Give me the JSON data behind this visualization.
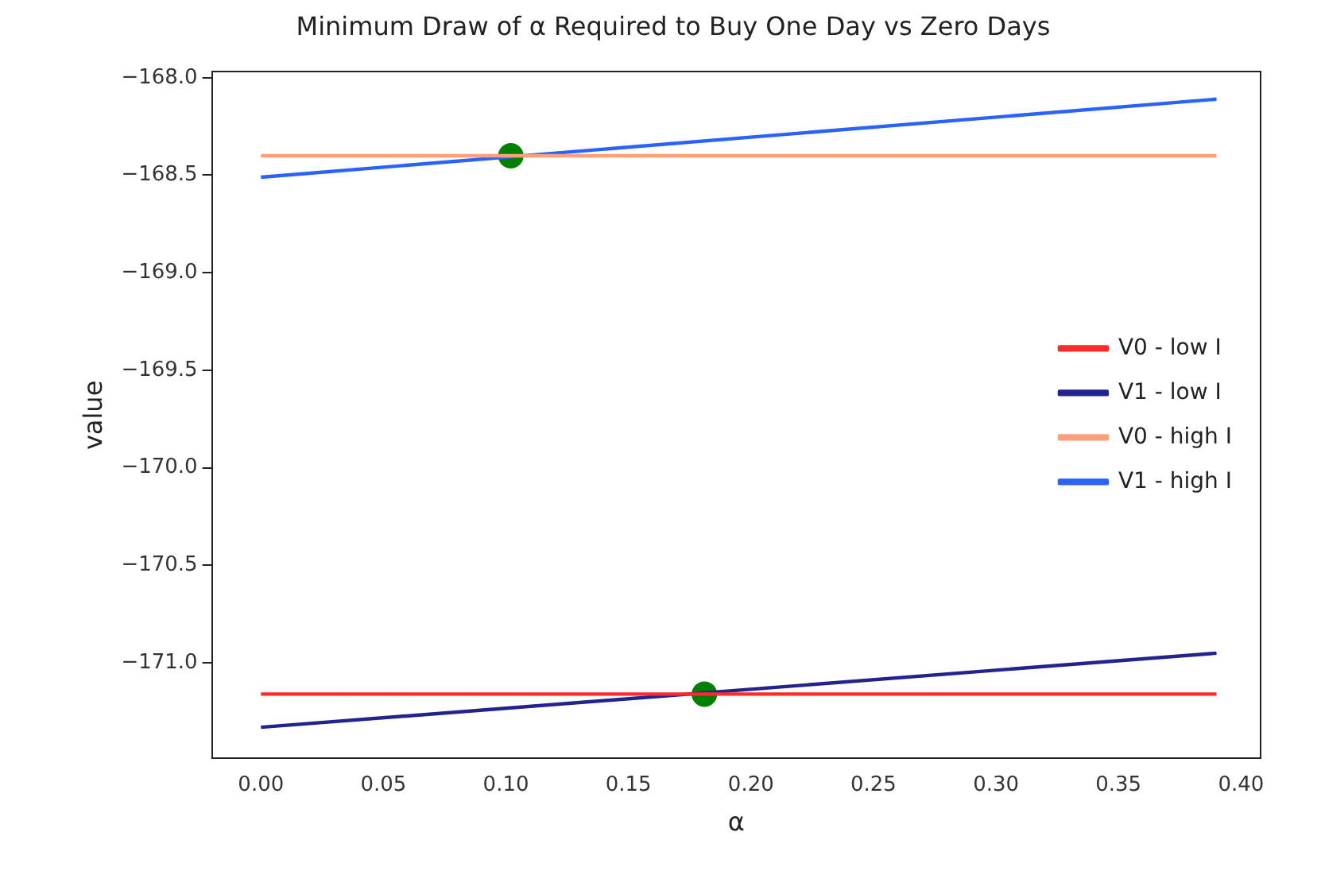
{
  "chart_data": {
    "type": "line",
    "title": "Minimum Draw of α Required to Buy One Day vs Zero Days",
    "xlabel": "α",
    "ylabel": "value",
    "xlim": [
      -0.02,
      0.408
    ],
    "xticks": [
      {
        "value": 0,
        "label": "0.00"
      },
      0.05,
      {
        "value": 0.1,
        "label": "0.10"
      },
      0.15,
      {
        "value": 0.2,
        "label": "0.20"
      },
      0.25,
      {
        "value": 0.3,
        "label": "0.30"
      },
      0.35,
      {
        "value": 0.4,
        "label": "0.40"
      }
    ],
    "ylim": [
      -171.49,
      -167.97
    ],
    "yticks": [
      {
        "value": -171,
        "label": "−171.0"
      },
      {
        "value": -170.5,
        "label": "−170.5"
      },
      {
        "value": -170,
        "label": "−170.0"
      },
      {
        "value": -169.5,
        "label": "−169.5"
      },
      {
        "value": -169,
        "label": "−169.0"
      },
      {
        "value": -168.5,
        "label": "−168.5"
      },
      {
        "value": -168,
        "label": "−168.0"
      }
    ],
    "grid": false,
    "legend": "right",
    "marker": "none",
    "line_style": "solid",
    "series": [
      {
        "name": "V0 - low I",
        "color": "#ff2a2a",
        "x": [
          0,
          0.39
        ],
        "values": [
          -171.16,
          -171.16
        ]
      },
      {
        "name": "V1 - low I",
        "color": "#23238e",
        "x": [
          0,
          0.39
        ],
        "values": [
          -171.33,
          -170.95
        ]
      },
      {
        "name": "V0 - high I",
        "color": "#ffa07a",
        "x": [
          0,
          0.39
        ],
        "values": [
          -168.4,
          -168.4
        ]
      },
      {
        "name": "V1 - high I",
        "color": "#2a62ff",
        "x": [
          0,
          0.39
        ],
        "values": [
          -168.51,
          -168.11
        ]
      },
      {
        "type": "scatter",
        "marker": "circle",
        "color": "#008000",
        "x": [
          0.102,
          0.181
        ],
        "values": [
          -168.4,
          -171.16
        ]
      }
    ]
  }
}
